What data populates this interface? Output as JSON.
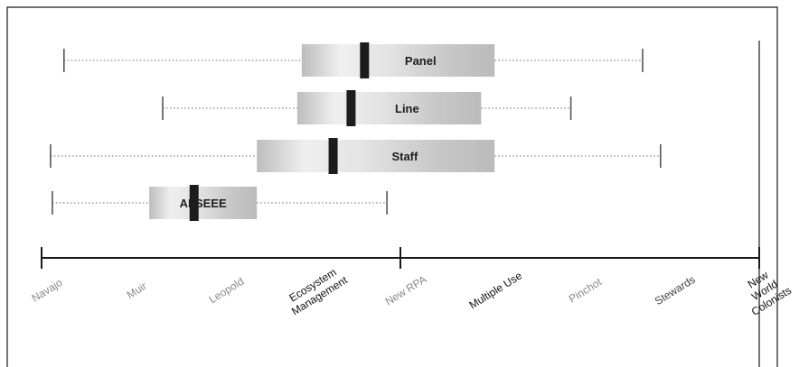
{
  "chart_data": {
    "type": "boxplot",
    "orientation": "horizontal",
    "x_scale": "ordinal",
    "title": "",
    "xlabel": "",
    "ylabel": "",
    "x_ticks": [
      "Navajo",
      "Muir",
      "Leopold",
      "Ecosystem Management",
      "New RPA",
      "Multiple Use",
      "Pinchot",
      "Stewards",
      "New World Colonists"
    ],
    "x_tick_colors": [
      "#8a8a8a",
      "#8a8a8a",
      "#8a8a8a",
      "#111111",
      "#8a8a8a",
      "#111111",
      "#8a8a8a",
      "#444444",
      "#111111"
    ],
    "major_ticks_at": [
      0,
      4,
      8
    ],
    "xlim": [
      0,
      8
    ],
    "grid": false,
    "series": [
      {
        "name": "Panel",
        "whisker_low": 0.25,
        "q1": 2.9,
        "median": 3.6,
        "q3": 5.05,
        "whisker_high": 6.7
      },
      {
        "name": "Line",
        "whisker_low": 1.35,
        "q1": 2.85,
        "median": 3.45,
        "q3": 4.9,
        "whisker_high": 5.9
      },
      {
        "name": "Staff",
        "whisker_low": 0.1,
        "q1": 2.4,
        "median": 3.25,
        "q3": 5.05,
        "whisker_high": 6.9
      },
      {
        "name": "AFSEEE",
        "whisker_low": 0.12,
        "q1": 1.2,
        "median": 1.7,
        "q3": 2.4,
        "whisker_high": 3.85
      }
    ]
  }
}
